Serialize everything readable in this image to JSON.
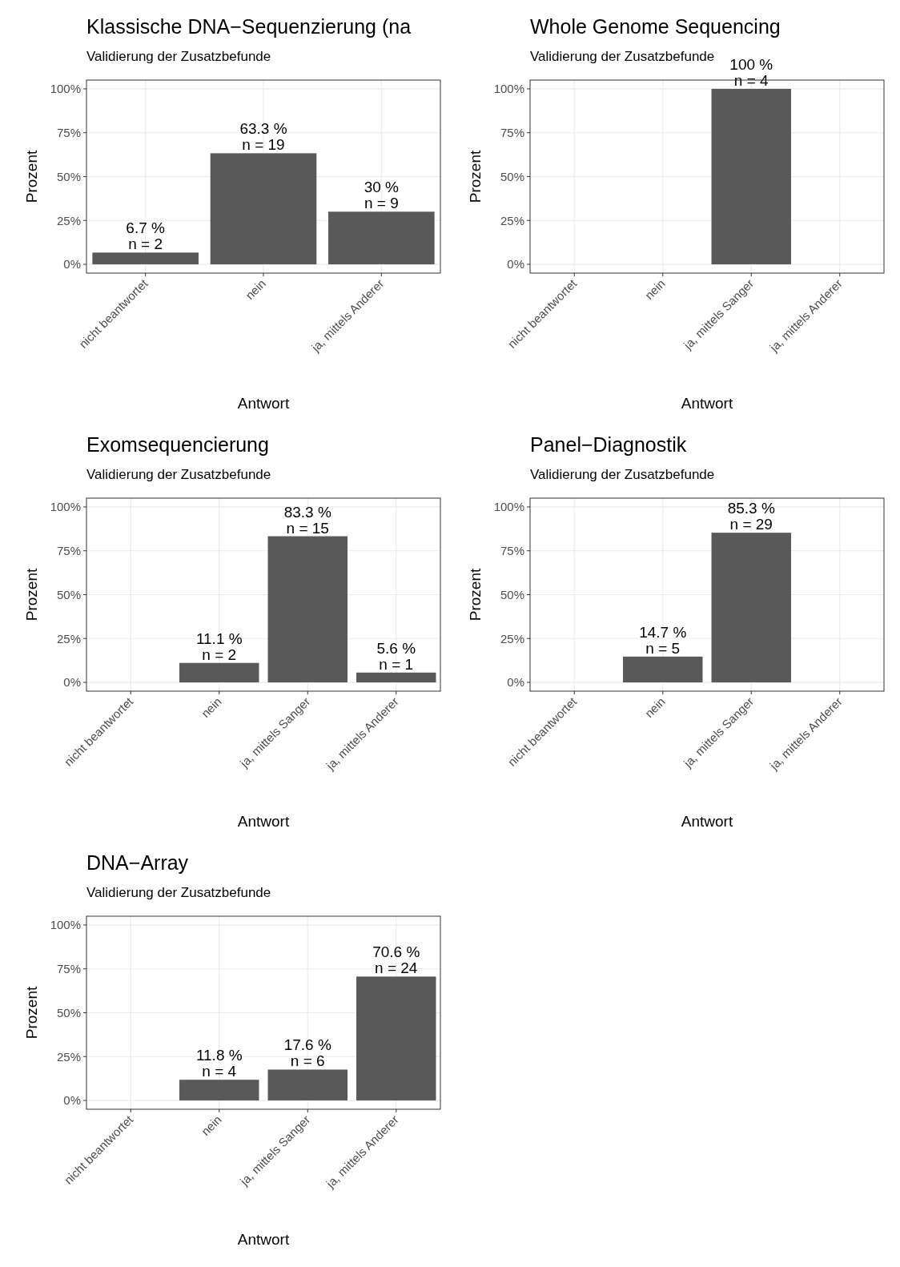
{
  "chart_data": [
    {
      "type": "bar",
      "title": "Klassische DNA−Sequenzierung (na",
      "subtitle": "Validierung der Zusatzbefunde",
      "xlabel": "Antwort",
      "ylabel": "Prozent",
      "categories": [
        "nicht beantwortet",
        "nein",
        "ja, mittels Anderer"
      ],
      "values": [
        6.7,
        63.3,
        30
      ],
      "value_labels": [
        "6.7 %\nn = 2",
        "63.3 %\nn = 19",
        "30 %\nn = 9"
      ],
      "color": "#595959",
      "ylim": [
        -5,
        105
      ],
      "yticks": [
        {
          "value": 0,
          "label": "0%"
        },
        {
          "value": 25,
          "label": "25%"
        },
        {
          "value": 50,
          "label": "50%"
        },
        {
          "value": 75,
          "label": "75%"
        },
        {
          "value": 100,
          "label": "100%"
        }
      ],
      "grid": true
    },
    {
      "type": "bar",
      "title": "Whole Genome Sequencing",
      "subtitle": "Validierung der Zusatzbefunde",
      "xlabel": "Antwort",
      "ylabel": "Prozent",
      "categories": [
        "nicht beantwortet",
        "nein",
        "ja, mittels Sanger",
        "ja, mittels Anderer"
      ],
      "values": [
        null,
        null,
        100,
        null
      ],
      "value_labels": [
        null,
        null,
        "100 %\nn = 4",
        null
      ],
      "color": "#595959",
      "ylim": [
        -5,
        105
      ],
      "yticks": [
        {
          "value": 0,
          "label": "0%"
        },
        {
          "value": 25,
          "label": "25%"
        },
        {
          "value": 50,
          "label": "50%"
        },
        {
          "value": 75,
          "label": "75%"
        },
        {
          "value": 100,
          "label": "100%"
        }
      ],
      "grid": true
    },
    {
      "type": "bar",
      "title": "Exomsequencierung",
      "subtitle": "Validierung der Zusatzbefunde",
      "xlabel": "Antwort",
      "ylabel": "Prozent",
      "categories": [
        "nicht beantwortet",
        "nein",
        "ja, mittels Sanger",
        "ja, mittels Anderer"
      ],
      "values": [
        null,
        11.1,
        83.3,
        5.6
      ],
      "value_labels": [
        null,
        "11.1 %\nn = 2",
        "83.3 %\nn = 15",
        "5.6 %\nn = 1"
      ],
      "color": "#595959",
      "ylim": [
        -5,
        105
      ],
      "yticks": [
        {
          "value": 0,
          "label": "0%"
        },
        {
          "value": 25,
          "label": "25%"
        },
        {
          "value": 50,
          "label": "50%"
        },
        {
          "value": 75,
          "label": "75%"
        },
        {
          "value": 100,
          "label": "100%"
        }
      ],
      "grid": true
    },
    {
      "type": "bar",
      "title": "Panel−Diagnostik",
      "subtitle": "Validierung der Zusatzbefunde",
      "xlabel": "Antwort",
      "ylabel": "Prozent",
      "categories": [
        "nicht beantwortet",
        "nein",
        "ja, mittels Sanger",
        "ja, mittels Anderer"
      ],
      "values": [
        null,
        14.7,
        85.3,
        null
      ],
      "value_labels": [
        null,
        "14.7 %\nn = 5",
        "85.3 %\nn = 29",
        null
      ],
      "color": "#595959",
      "ylim": [
        -5,
        105
      ],
      "yticks": [
        {
          "value": 0,
          "label": "0%"
        },
        {
          "value": 25,
          "label": "25%"
        },
        {
          "value": 50,
          "label": "50%"
        },
        {
          "value": 75,
          "label": "75%"
        },
        {
          "value": 100,
          "label": "100%"
        }
      ],
      "grid": true
    },
    {
      "type": "bar",
      "title": "DNA−Array",
      "subtitle": "Validierung der Zusatzbefunde",
      "xlabel": "Antwort",
      "ylabel": "Prozent",
      "categories": [
        "nicht beantwortet",
        "nein",
        "ja, mittels Sanger",
        "ja, mittels Anderer"
      ],
      "values": [
        null,
        11.8,
        17.6,
        70.6
      ],
      "value_labels": [
        null,
        "11.8 %\nn = 4",
        "17.6 %\nn = 6",
        "70.6 %\nn = 24"
      ],
      "color": "#595959",
      "ylim": [
        -5,
        105
      ],
      "yticks": [
        {
          "value": 0,
          "label": "0%"
        },
        {
          "value": 25,
          "label": "25%"
        },
        {
          "value": 50,
          "label": "50%"
        },
        {
          "value": 75,
          "label": "75%"
        },
        {
          "value": 100,
          "label": "100%"
        }
      ],
      "grid": true
    }
  ]
}
